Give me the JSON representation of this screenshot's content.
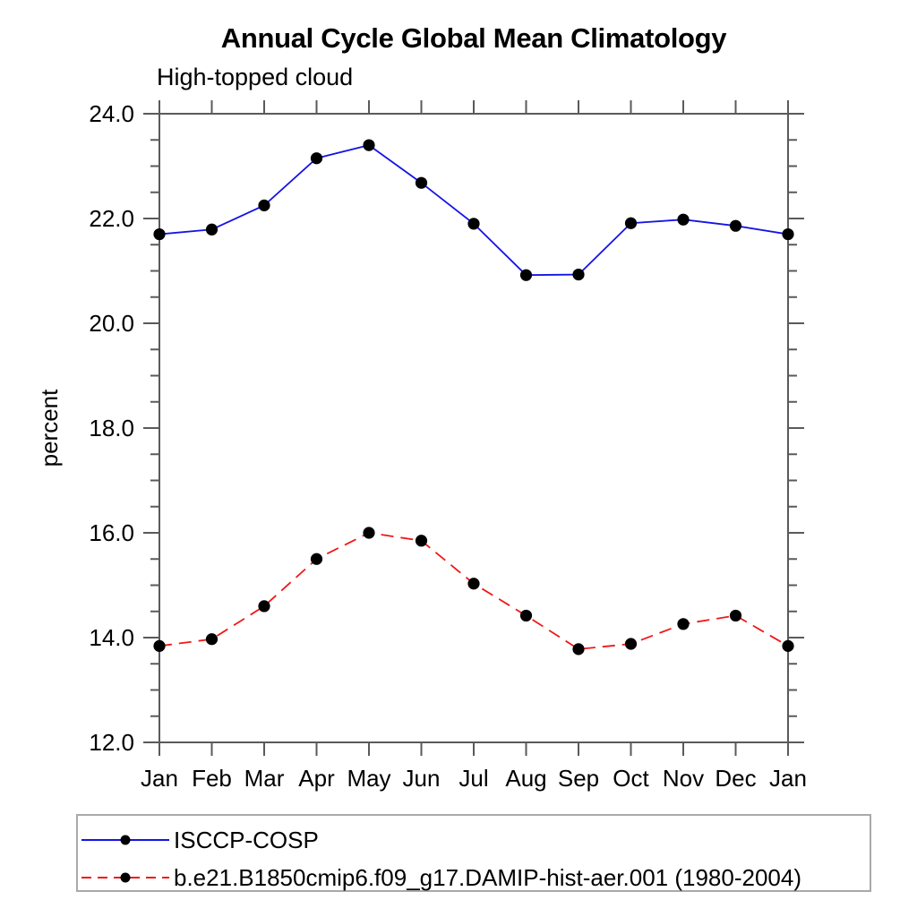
{
  "chart_data": {
    "type": "line",
    "title": "Annual Cycle Global Mean Climatology",
    "subtitle": "High-topped cloud",
    "ylabel": "percent",
    "xlabel": "",
    "categories": [
      "Jan",
      "Feb",
      "Mar",
      "Apr",
      "May",
      "Jun",
      "Jul",
      "Aug",
      "Sep",
      "Oct",
      "Nov",
      "Dec",
      "Jan"
    ],
    "ylim": [
      12.0,
      24.0
    ],
    "ytick_interval": 2.0,
    "ytick_minor_interval": 0.5,
    "ytick_labels": [
      "12.0",
      "14.0",
      "16.0",
      "18.0",
      "20.0",
      "22.0",
      "24.0"
    ],
    "grid": false,
    "legend_position": "bottom-left",
    "marker": "filled-circle",
    "marker_color": "#000000",
    "frame_color": "#5a5a5a",
    "series": [
      {
        "name": "ISCCP-COSP",
        "color": "#1414e6",
        "line_style": "solid",
        "values": [
          21.7,
          21.79,
          22.25,
          23.15,
          23.4,
          22.68,
          21.9,
          20.92,
          20.93,
          21.91,
          21.98,
          21.86,
          21.7
        ]
      },
      {
        "name": "b.e21.B1850cmip6.f09_g17.DAMIP-hist-aer.001 (1980-2004)",
        "color": "#f01818",
        "line_style": "dashed",
        "values": [
          13.84,
          13.97,
          14.6,
          15.5,
          16.0,
          15.85,
          15.03,
          14.42,
          13.78,
          13.88,
          14.26,
          14.42,
          13.84
        ]
      }
    ]
  }
}
